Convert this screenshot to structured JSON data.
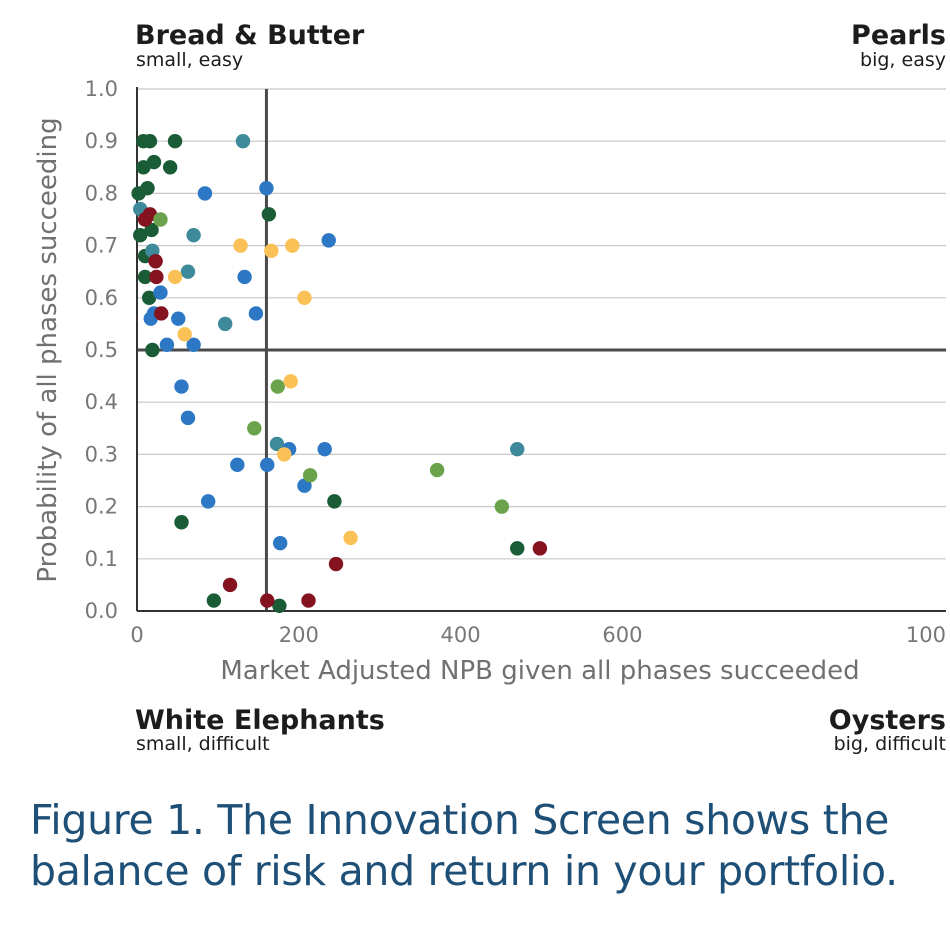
{
  "quadrants": {
    "top_left": {
      "title": "Bread & Butter",
      "subtitle": "small, easy"
    },
    "top_right": {
      "title": "Pearls",
      "subtitle": "big, easy"
    },
    "bottom_left": {
      "title": "White Elephants",
      "subtitle": "small, difficult"
    },
    "bottom_right": {
      "title": "Oysters",
      "subtitle": "big, difficult"
    }
  },
  "caption": "Figure 1. The Innovation Screen shows the balance of risk and return in your portfolio.",
  "colors": {
    "dark_green": "#1a5c36",
    "teal": "#3f8a9a",
    "blue": "#2c78c5",
    "dark_red": "#84121f",
    "light_green": "#6aa34b",
    "yellow": "#f9c156",
    "axis": "#333333",
    "grid": "#c8c8c8",
    "divider": "#4a4a4a"
  },
  "chart_data": {
    "type": "scatter",
    "xlabel": "Market Adjusted NPB given all phases succeeded",
    "ylabel": "Probability of all phases succeeding",
    "xlim": [
      0,
      1000
    ],
    "ylim": [
      0,
      1.0
    ],
    "x_ticks": [
      "0",
      "200",
      "400",
      "600",
      "100"
    ],
    "y_ticks": [
      "0.0",
      "0.1",
      "0.2",
      "0.3",
      "0.4",
      "0.5",
      "0.6",
      "0.7",
      "0.8",
      "0.9",
      "1.0"
    ],
    "grid": true,
    "divider": {
      "x": 160,
      "y": 0.5
    },
    "series": [
      {
        "color_key": "dark_green",
        "points": [
          [
            8,
            0.9
          ],
          [
            16,
            0.9
          ],
          [
            47,
            0.9
          ],
          [
            8,
            0.85
          ],
          [
            21,
            0.86
          ],
          [
            41,
            0.85
          ],
          [
            2,
            0.8
          ],
          [
            13,
            0.81
          ],
          [
            163,
            0.76
          ],
          [
            4,
            0.72
          ],
          [
            18,
            0.73
          ],
          [
            10,
            0.68
          ],
          [
            10,
            0.64
          ],
          [
            15,
            0.6
          ],
          [
            19,
            0.5
          ],
          [
            55,
            0.17
          ],
          [
            95,
            0.02
          ],
          [
            176,
            0.01
          ],
          [
            244,
            0.21
          ],
          [
            470,
            0.12
          ]
        ]
      },
      {
        "color_key": "teal",
        "points": [
          [
            131,
            0.9
          ],
          [
            4,
            0.77
          ],
          [
            19,
            0.69
          ],
          [
            70,
            0.72
          ],
          [
            63,
            0.65
          ],
          [
            109,
            0.55
          ],
          [
            173,
            0.32
          ],
          [
            470,
            0.31
          ]
        ]
      },
      {
        "color_key": "blue",
        "points": [
          [
            84,
            0.8
          ],
          [
            160,
            0.81
          ],
          [
            237,
            0.71
          ],
          [
            133,
            0.64
          ],
          [
            29,
            0.61
          ],
          [
            17,
            0.56
          ],
          [
            21,
            0.57
          ],
          [
            51,
            0.56
          ],
          [
            147,
            0.57
          ],
          [
            37,
            0.51
          ],
          [
            70,
            0.51
          ],
          [
            55,
            0.43
          ],
          [
            63,
            0.37
          ],
          [
            188,
            0.31
          ],
          [
            232,
            0.31
          ],
          [
            124,
            0.28
          ],
          [
            161,
            0.28
          ],
          [
            207,
            0.24
          ],
          [
            88,
            0.21
          ],
          [
            177,
            0.13
          ]
        ]
      },
      {
        "color_key": "dark_red",
        "points": [
          [
            10,
            0.75
          ],
          [
            16,
            0.76
          ],
          [
            23,
            0.67
          ],
          [
            24,
            0.64
          ],
          [
            30,
            0.57
          ],
          [
            115,
            0.05
          ],
          [
            161,
            0.02
          ],
          [
            212,
            0.02
          ],
          [
            246,
            0.09
          ],
          [
            498,
            0.12
          ]
        ]
      },
      {
        "color_key": "light_green",
        "points": [
          [
            29,
            0.75
          ],
          [
            174,
            0.43
          ],
          [
            145,
            0.35
          ],
          [
            214,
            0.26
          ],
          [
            371,
            0.27
          ],
          [
            451,
            0.2
          ]
        ]
      },
      {
        "color_key": "yellow",
        "points": [
          [
            128,
            0.7
          ],
          [
            166,
            0.69
          ],
          [
            192,
            0.7
          ],
          [
            47,
            0.64
          ],
          [
            207,
            0.6
          ],
          [
            59,
            0.53
          ],
          [
            190,
            0.44
          ],
          [
            182,
            0.3
          ],
          [
            264,
            0.14
          ]
        ]
      }
    ]
  }
}
